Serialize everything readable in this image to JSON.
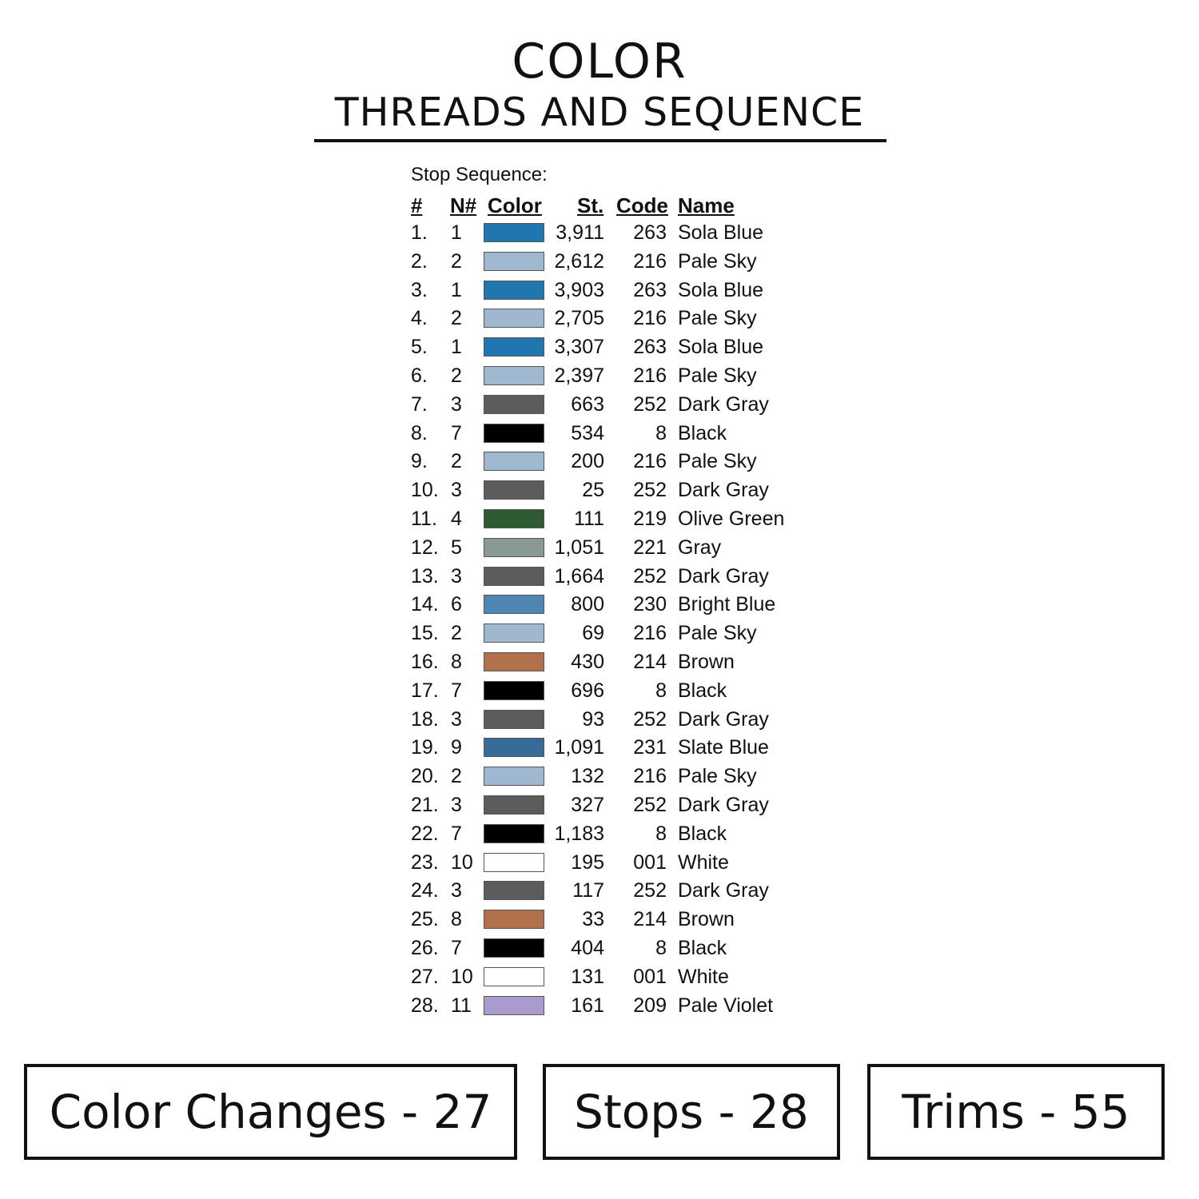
{
  "header": {
    "title": "COLOR",
    "subtitle": "THREADS AND SEQUENCE"
  },
  "sequence_label": "Stop Sequence:",
  "columns": {
    "index": "#",
    "needle": "N#",
    "color": "Color",
    "stitches": "St.",
    "code": "Code",
    "name": "Name"
  },
  "rows": [
    {
      "index": "1.",
      "needle": "1",
      "stitches": "3,911",
      "code": "263",
      "name": "Sola Blue",
      "color": "#1f77ad"
    },
    {
      "index": "2.",
      "needle": "2",
      "stitches": "2,612",
      "code": "216",
      "name": "Pale Sky",
      "color": "#a0b8cf"
    },
    {
      "index": "3.",
      "needle": "1",
      "stitches": "3,903",
      "code": "263",
      "name": "Sola Blue",
      "color": "#1f77ad"
    },
    {
      "index": "4.",
      "needle": "2",
      "stitches": "2,705",
      "code": "216",
      "name": "Pale Sky",
      "color": "#a0b8cf"
    },
    {
      "index": "5.",
      "needle": "1",
      "stitches": "3,307",
      "code": "263",
      "name": "Sola Blue",
      "color": "#1f77ad"
    },
    {
      "index": "6.",
      "needle": "2",
      "stitches": "2,397",
      "code": "216",
      "name": "Pale Sky",
      "color": "#a0b8cf"
    },
    {
      "index": "7.",
      "needle": "3",
      "stitches": "663",
      "code": "252",
      "name": "Dark Gray",
      "color": "#5a5c5e"
    },
    {
      "index": "8.",
      "needle": "7",
      "stitches": "534",
      "code": "8",
      "name": "Black",
      "color": "#000000"
    },
    {
      "index": "9.",
      "needle": "2",
      "stitches": "200",
      "code": "216",
      "name": "Pale Sky",
      "color": "#a0b8cf"
    },
    {
      "index": "10.",
      "needle": "3",
      "stitches": "25",
      "code": "252",
      "name": "Dark Gray",
      "color": "#5a5c5e"
    },
    {
      "index": "11.",
      "needle": "4",
      "stitches": "111",
      "code": "219",
      "name": "Olive Green",
      "color": "#2e5a34"
    },
    {
      "index": "12.",
      "needle": "5",
      "stitches": "1,051",
      "code": "221",
      "name": "Gray",
      "color": "#889a92"
    },
    {
      "index": "13.",
      "needle": "3",
      "stitches": "1,664",
      "code": "252",
      "name": "Dark Gray",
      "color": "#5a5c5e"
    },
    {
      "index": "14.",
      "needle": "6",
      "stitches": "800",
      "code": "230",
      "name": "Bright Blue",
      "color": "#4f85b2"
    },
    {
      "index": "15.",
      "needle": "2",
      "stitches": "69",
      "code": "216",
      "name": "Pale Sky",
      "color": "#a0b8cf"
    },
    {
      "index": "16.",
      "needle": "8",
      "stitches": "430",
      "code": "214",
      "name": "Brown",
      "color": "#b2714b"
    },
    {
      "index": "17.",
      "needle": "7",
      "stitches": "696",
      "code": "8",
      "name": "Black",
      "color": "#000000"
    },
    {
      "index": "18.",
      "needle": "3",
      "stitches": "93",
      "code": "252",
      "name": "Dark Gray",
      "color": "#5a5c5e"
    },
    {
      "index": "19.",
      "needle": "9",
      "stitches": "1,091",
      "code": "231",
      "name": "Slate Blue",
      "color": "#376a96"
    },
    {
      "index": "20.",
      "needle": "2",
      "stitches": "132",
      "code": "216",
      "name": "Pale Sky",
      "color": "#a0b8cf"
    },
    {
      "index": "21.",
      "needle": "3",
      "stitches": "327",
      "code": "252",
      "name": "Dark Gray",
      "color": "#5a5c5e"
    },
    {
      "index": "22.",
      "needle": "7",
      "stitches": "1,183",
      "code": "8",
      "name": "Black",
      "color": "#000000"
    },
    {
      "index": "23.",
      "needle": "10",
      "stitches": "195",
      "code": "001",
      "name": "White",
      "color": "#ffffff"
    },
    {
      "index": "24.",
      "needle": "3",
      "stitches": "117",
      "code": "252",
      "name": "Dark Gray",
      "color": "#5a5c5e"
    },
    {
      "index": "25.",
      "needle": "8",
      "stitches": "33",
      "code": "214",
      "name": "Brown",
      "color": "#b2714b"
    },
    {
      "index": "26.",
      "needle": "7",
      "stitches": "404",
      "code": "8",
      "name": "Black",
      "color": "#000000"
    },
    {
      "index": "27.",
      "needle": "10",
      "stitches": "131",
      "code": "001",
      "name": "White",
      "color": "#ffffff"
    },
    {
      "index": "28.",
      "needle": "11",
      "stitches": "161",
      "code": "209",
      "name": "Pale Violet",
      "color": "#a99bcd"
    }
  ],
  "summary": {
    "color_changes": "Color Changes - 27",
    "stops": "Stops - 28",
    "trims": "Trims - 55"
  }
}
